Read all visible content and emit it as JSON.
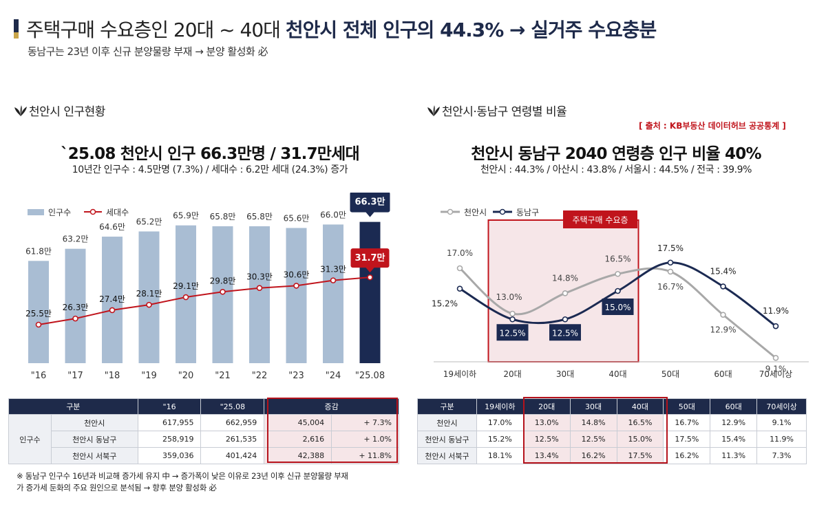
{
  "header": {
    "title_prefix": "주택구매 수요층인 20대 ~ 40대",
    "title_strong": "천안시 전체 인구의 44.3% → 실거주 수요충분",
    "subtitle": "동남구는 23년 이후 신규 분양물량 부재 → 분양 활성화 必"
  },
  "left": {
    "section_title": "천안시 인구현황",
    "headline": "`25.08 천안시 인구 66.3만명 / 31.7만세대",
    "subline": "10년간 인구수 : 4.5만명 (7.3%) / 세대수 : 6.2만 세대 (24.3%) 증가"
  },
  "right": {
    "section_title": "천안시·동남구 연령별 비율",
    "source": "[ 출처 : KB부동산 데이터허브 공공통계 ]",
    "headline": "천안시 동남구 2040 연령층 인구 비율 40%",
    "subline": "천안시 : 44.3% / 아산시 : 43.8% / 서울시 : 44.5% / 전국 : 39.9%"
  },
  "chart_data": [
    {
      "type": "bar",
      "categories": [
        "\"16",
        "\"17",
        "\"18",
        "\"19",
        "\"20",
        "\"21",
        "\"22",
        "\"23",
        "\"24",
        "\"25.08"
      ],
      "series": [
        {
          "name": "인구수",
          "values": [
            61.8,
            63.2,
            64.6,
            65.2,
            65.9,
            65.8,
            65.8,
            65.6,
            66.0,
            66.3
          ],
          "labels": [
            "61.8만",
            "63.2만",
            "64.6만",
            "65.2만",
            "65.9만",
            "65.8만",
            "65.8만",
            "65.6만",
            "66.0만",
            "66.3만"
          ]
        },
        {
          "name": "세대수",
          "type": "line",
          "values": [
            25.5,
            26.3,
            27.4,
            28.1,
            29.1,
            29.8,
            30.3,
            30.6,
            31.3,
            31.7
          ],
          "labels": [
            "25.5만",
            "26.3만",
            "27.4만",
            "28.1만",
            "29.1만",
            "29.8만",
            "30.3만",
            "30.6만",
            "31.3만",
            "31.7만"
          ]
        }
      ],
      "legend": "top-left",
      "highlight_last": true,
      "colors": {
        "bar": "#a9bdd3",
        "bar_highlight": "#1b2a52",
        "line": "#c0141c"
      }
    },
    {
      "type": "line",
      "categories": [
        "19세이하",
        "20대",
        "30대",
        "40대",
        "50대",
        "60대",
        "70세이상"
      ],
      "series": [
        {
          "name": "천안시",
          "values": [
            17.0,
            13.0,
            14.8,
            16.5,
            16.7,
            12.9,
            9.1
          ],
          "labels": [
            "17.0%",
            "13.0%",
            "14.8%",
            "16.5%",
            "16.7%",
            "12.9%",
            "9.1%"
          ]
        },
        {
          "name": "동남구",
          "values": [
            15.2,
            12.5,
            12.5,
            15.0,
            17.5,
            15.4,
            11.9
          ],
          "labels": [
            "15.2%",
            "12.5%",
            "12.5%",
            "15.0%",
            "17.5%",
            "15.4%",
            "11.9%"
          ]
        }
      ],
      "highlight_band": {
        "label": "주택구매 수요층",
        "from": "20대",
        "to": "40대"
      },
      "legend": "top-left",
      "colors": {
        "천안시": "#a8a8a8",
        "동남구": "#1b2a52",
        "band": "#c0141c"
      }
    }
  ],
  "pop_table": {
    "headers": [
      "구분",
      "\"16",
      "\"25.08",
      "증감"
    ],
    "group_label": "인구수",
    "rows": [
      {
        "name": "천안시",
        "y16": "617,955",
        "y25": "662,959",
        "diff": "45,004",
        "rate": "+ 7.3%"
      },
      {
        "name": "천안시 동남구",
        "y16": "258,919",
        "y25": "261,535",
        "diff": "2,616",
        "rate": "+ 1.0%"
      },
      {
        "name": "천안시 서북구",
        "y16": "359,036",
        "y25": "401,424",
        "diff": "42,388",
        "rate": "+ 11.8%"
      }
    ]
  },
  "age_table": {
    "headers": [
      "구분",
      "19세이하",
      "20대",
      "30대",
      "40대",
      "50대",
      "60대",
      "70세이상"
    ],
    "rows": [
      {
        "name": "천안시",
        "cells": [
          "17.0%",
          "13.0%",
          "14.8%",
          "16.5%",
          "16.7%",
          "12.9%",
          "9.1%"
        ]
      },
      {
        "name": "천안시 동남구",
        "cells": [
          "15.2%",
          "12.5%",
          "12.5%",
          "15.0%",
          "17.5%",
          "15.4%",
          "11.9%"
        ]
      },
      {
        "name": "천안시 서북구",
        "cells": [
          "18.1%",
          "13.4%",
          "16.2%",
          "17.5%",
          "16.2%",
          "11.3%",
          "7.3%"
        ]
      }
    ]
  },
  "note": {
    "line1": "※ 동남구 인구수 16년과 비교해 증가세 유지 中 → 증가폭이 낮은 이유로 23년 이후 신규 분양물량 부재",
    "line2": "가 증가세 둔화의 주요 원인으로 분석됨 → 향후 분양 활성화 必"
  }
}
